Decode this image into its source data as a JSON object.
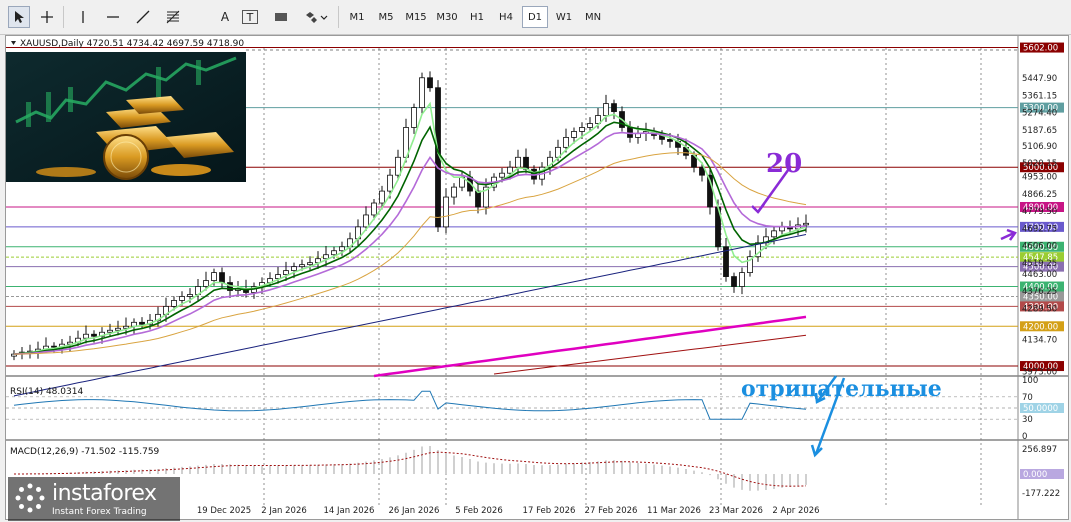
{
  "toolbar": {
    "icons": [
      "cursor-icon",
      "crosshair-icon",
      "vertical-line-icon",
      "horizontal-line-icon",
      "trendline-icon",
      "fibonacci-icon",
      "text-icon",
      "text-label-icon",
      "rectangle-icon",
      "shapes-icon"
    ],
    "text_tool": "A",
    "text_label_tool": "T",
    "timeframes": [
      "M1",
      "M5",
      "M15",
      "M30",
      "H1",
      "H4",
      "D1",
      "W1",
      "MN"
    ],
    "active_timeframe": "D1"
  },
  "chart": {
    "symbol_line": "XAUUSD,Daily  4720.51 4734.42 4697.59 4718.90",
    "price_axis": [
      "5447.90",
      "5361.15",
      "5274.40",
      "5187.65",
      "5106.90",
      "5020.15",
      "4953.00",
      "4866.25",
      "4779.50",
      "4692.75",
      "4606.00",
      "4519.25",
      "4463.00",
      "4376.25",
      "4289.50",
      "4134.70",
      "3973.00"
    ],
    "level_labels": [
      {
        "text": "5602.00",
        "color": "#8b0000",
        "price": 5602
      },
      {
        "text": "5300.00",
        "color": "#5f9ea0",
        "price": 5300
      },
      {
        "text": "5000.00",
        "color": "#8b0000",
        "price": 5000
      },
      {
        "text": "4800.00",
        "color": "#c71585",
        "price": 4800
      },
      {
        "text": "4700.00",
        "color": "#6a5acd",
        "price": 4700
      },
      {
        "text": "4600.00",
        "color": "#3cb371",
        "price": 4600
      },
      {
        "text": "4547.85",
        "color": "#9acd32",
        "price": 4547.85
      },
      {
        "text": "4500.00",
        "color": "#8a6fb0",
        "price": 4500
      },
      {
        "text": "4400.00",
        "color": "#3cb371",
        "price": 4400
      },
      {
        "text": "4350.00",
        "color": "#999999",
        "price": 4350
      },
      {
        "text": "4300.00",
        "color": "#b24a4a",
        "price": 4300
      },
      {
        "text": "4200.00",
        "color": "#d4a017",
        "price": 4200
      },
      {
        "text": "4000.00",
        "color": "#8b0000",
        "price": 4000
      }
    ],
    "date_axis": [
      "19 Dec 2025",
      "2 Jan 2026",
      "14 Jan 2026",
      "26 Jan 2026",
      "5 Feb 2026",
      "17 Feb 2026",
      "27 Feb 2026",
      "11 Mar 2026",
      "23 Mar 2026",
      "2 Apr 2026"
    ],
    "annotation_20": "20",
    "annotation_negative": "отрицательные"
  },
  "rsi": {
    "title": "RSI(14) 48.0314",
    "axis": [
      "100",
      "70",
      "50.0000",
      "30",
      "0"
    ]
  },
  "macd": {
    "title": "MACD(12,26,9) -71.502 -115.759",
    "axis": [
      "256.897",
      "0.000",
      "-177.222"
    ]
  },
  "logo": {
    "name": "instaforex",
    "tagline": "Instant Forex Trading"
  },
  "colors": {
    "candle": "#111111",
    "ema_fast": "#90ee90",
    "ema_mid": "#006400",
    "ema_slow": "#b46ad8",
    "ma_orange": "#d9a441",
    "ma_navy": "#1a237e",
    "ma_magenta": "#e000c0",
    "ma_darkred": "#a01010",
    "rsi_line": "#1f77b4",
    "macd_hist": "#a0a0a0",
    "macd_signal": "#a01010"
  }
}
